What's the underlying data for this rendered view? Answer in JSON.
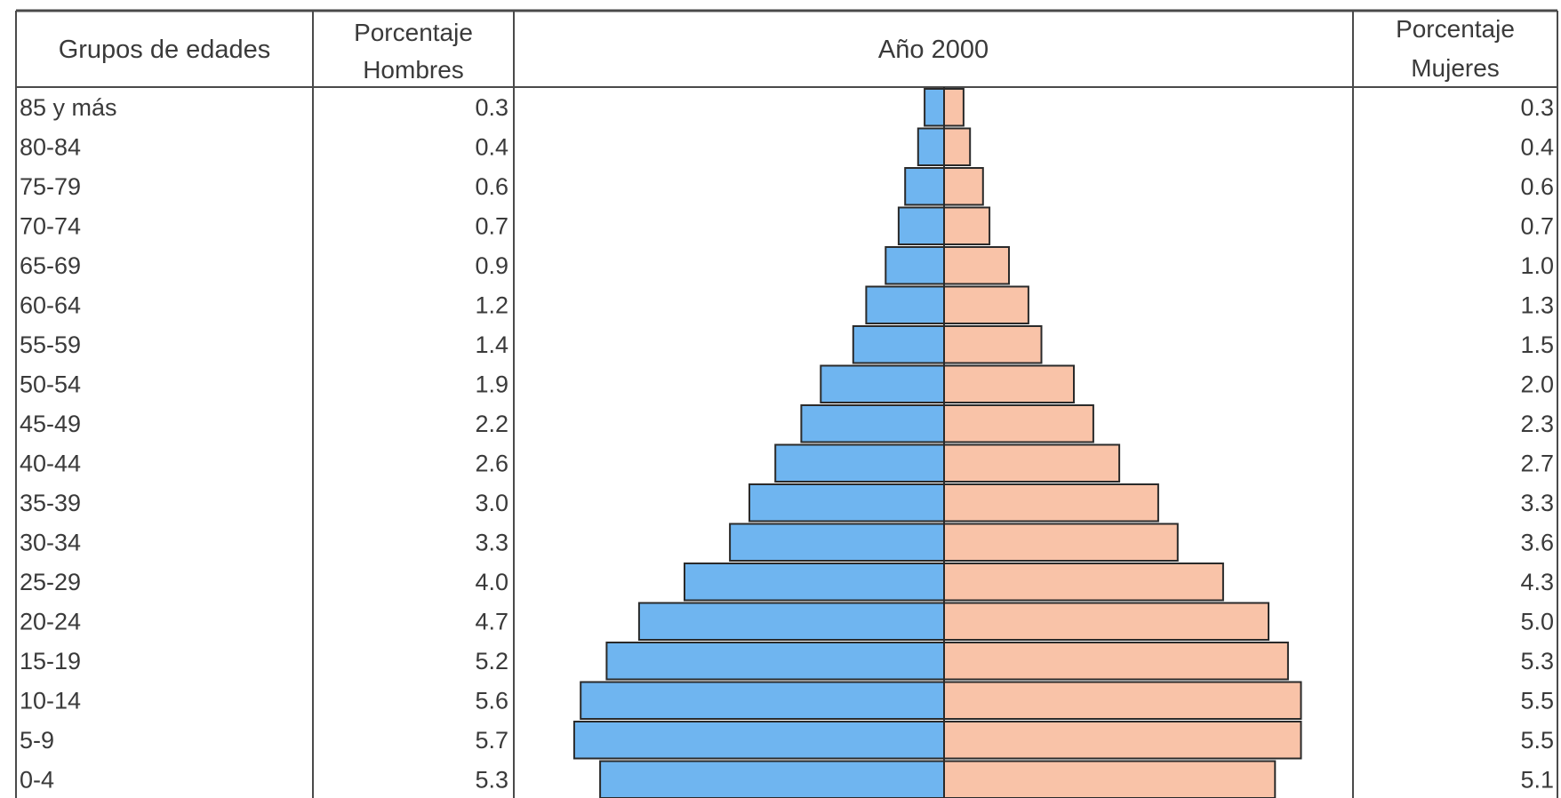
{
  "headers": {
    "age": "Grupos de edades",
    "men_line1": "Porcentaje",
    "men_line2": "Hombres",
    "chart": "Año 2000",
    "women_line1": "Porcentaje",
    "women_line2": "Mujeres"
  },
  "colors": {
    "men": "#6fb5f0",
    "women": "#f9c3a8",
    "outline": "#2a2a2a",
    "grid": "#4a4a4a"
  },
  "chart_data": {
    "type": "bar",
    "title": "Año 2000",
    "orientation": "horizontal-pyramid",
    "categories": [
      "85 y más",
      "80-84",
      "75-79",
      "70-74",
      "65-69",
      "60-64",
      "55-59",
      "50-54",
      "45-49",
      "40-44",
      "35-39",
      "30-34",
      "25-29",
      "20-24",
      "15-19",
      "10-14",
      "5-9",
      "0-4"
    ],
    "series": [
      {
        "name": "Hombres",
        "values": [
          0.3,
          0.4,
          0.6,
          0.7,
          0.9,
          1.2,
          1.4,
          1.9,
          2.2,
          2.6,
          3.0,
          3.3,
          4.0,
          4.7,
          5.2,
          5.6,
          5.7,
          5.3
        ]
      },
      {
        "name": "Mujeres",
        "values": [
          0.3,
          0.4,
          0.6,
          0.7,
          1.0,
          1.3,
          1.5,
          2.0,
          2.3,
          2.7,
          3.3,
          3.6,
          4.3,
          5.0,
          5.3,
          5.5,
          5.5,
          5.1
        ]
      }
    ],
    "men_labels": [
      "0.3",
      "0.4",
      "0.6",
      "0.7",
      "0.9",
      "1.2",
      "1.4",
      "1.9",
      "2.2",
      "2.6",
      "3.0",
      "3.3",
      "4.0",
      "4.7",
      "5.2",
      "5.6",
      "5.7",
      "5.3"
    ],
    "women_labels": [
      "0.3",
      "0.4",
      "0.6",
      "0.7",
      "1.0",
      "1.3",
      "1.5",
      "2.0",
      "2.3",
      "2.7",
      "3.3",
      "3.6",
      "4.3",
      "5.0",
      "5.3",
      "5.5",
      "5.5",
      "5.1"
    ],
    "grid": false,
    "legend": "none"
  }
}
